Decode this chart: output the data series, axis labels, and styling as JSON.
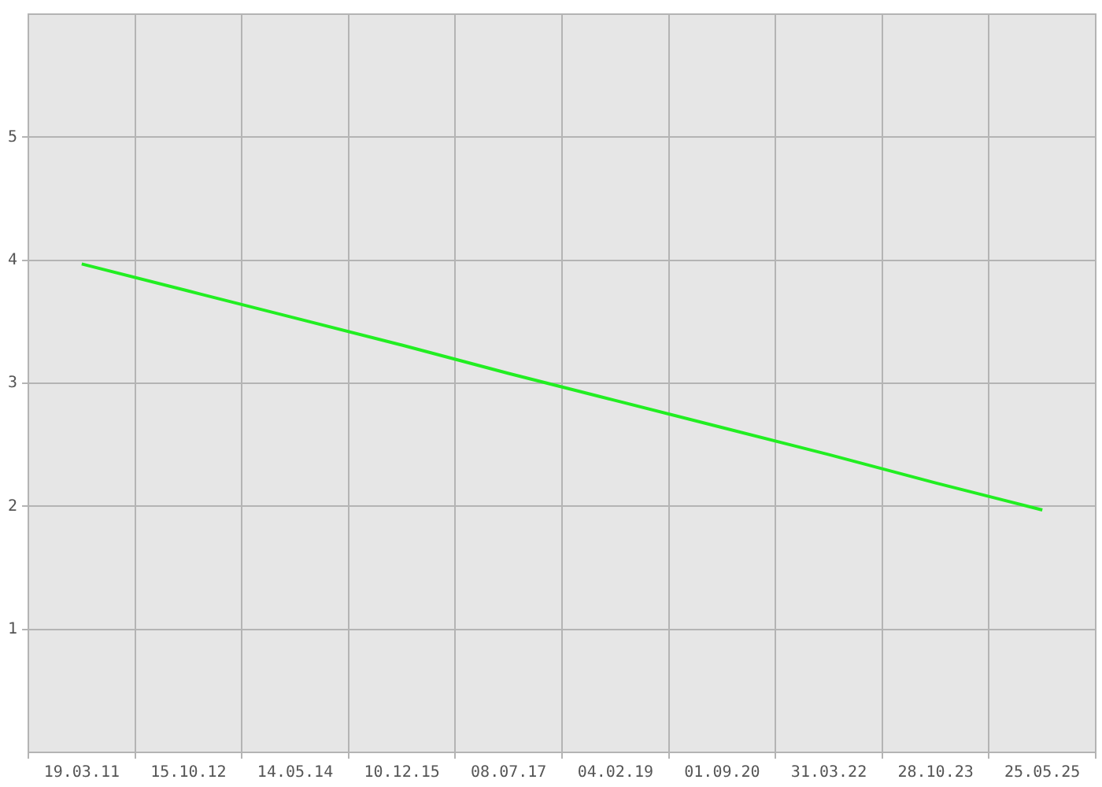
{
  "chart_data": {
    "type": "line",
    "categories": [
      "19.03.11",
      "15.10.12",
      "14.05.14",
      "10.12.15",
      "08.07.17",
      "04.02.19",
      "01.09.20",
      "31.03.22",
      "28.10.23",
      "25.05.25"
    ],
    "series": [
      {
        "color": "#22ee22",
        "values": [
          3.97,
          3.75,
          3.53,
          3.31,
          3.08,
          2.86,
          2.64,
          2.42,
          2.19,
          1.97
        ]
      }
    ],
    "ylim": [
      0,
      6
    ],
    "yticks": [
      1,
      2,
      3,
      4,
      5
    ],
    "grid": true,
    "legend": false,
    "marker": "none",
    "line_style": "solid"
  }
}
